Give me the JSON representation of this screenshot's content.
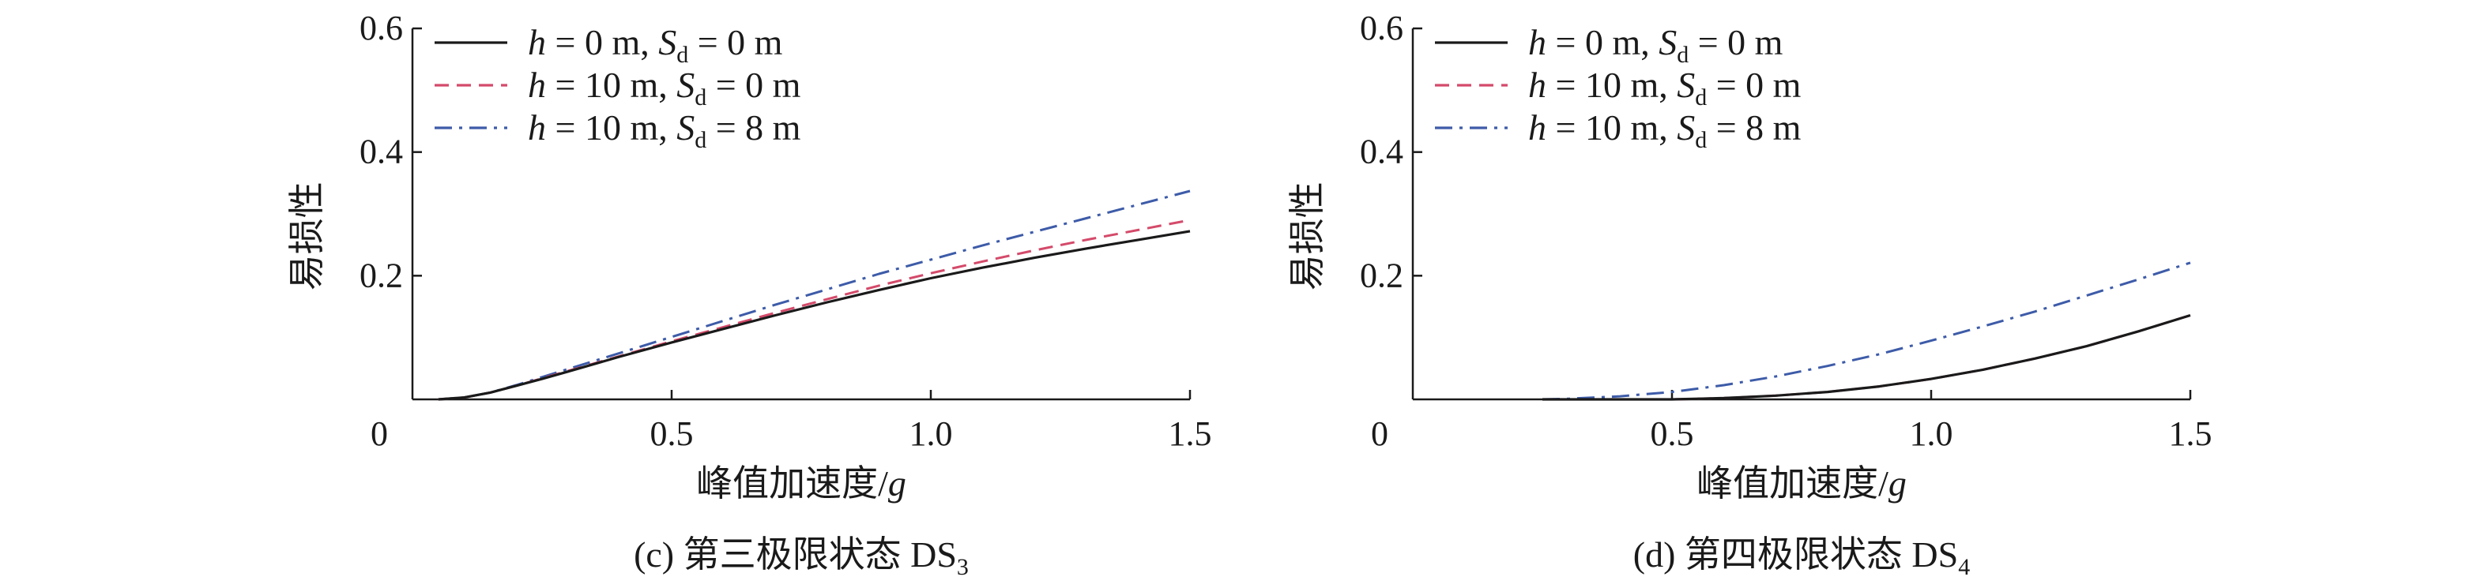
{
  "chart_data": [
    {
      "type": "line",
      "title": "",
      "caption": "(c) 第三极限状态 DS₃",
      "xlabel": "峰值加速度/g",
      "ylabel": "易损性",
      "xlim": [
        0,
        1.5
      ],
      "ylim": [
        0,
        0.6
      ],
      "xticks": [
        "0",
        "0.5",
        "1.0",
        "1.5"
      ],
      "yticks": [
        "0.2",
        "0.4",
        "0.6"
      ],
      "legend_position": "top-left",
      "x": [
        0.05,
        0.1,
        0.15,
        0.2,
        0.25,
        0.3,
        0.4,
        0.5,
        0.6,
        0.7,
        0.8,
        0.9,
        1.0,
        1.1,
        1.2,
        1.3,
        1.4,
        1.5
      ],
      "series": [
        {
          "name": "h = 0 m, Sd = 0 m",
          "style": "solid",
          "color": "#1a1a1a",
          "values": [
            0.0,
            0.003,
            0.011,
            0.022,
            0.033,
            0.045,
            0.069,
            0.092,
            0.114,
            0.136,
            0.157,
            0.177,
            0.196,
            0.213,
            0.229,
            0.244,
            0.258,
            0.272
          ]
        },
        {
          "name": "h = 10 m, Sd = 0 m",
          "style": "dashed",
          "color": "#d44a6a",
          "values": [
            0.0,
            0.003,
            0.011,
            0.022,
            0.034,
            0.046,
            0.07,
            0.094,
            0.117,
            0.14,
            0.162,
            0.184,
            0.204,
            0.223,
            0.241,
            0.258,
            0.274,
            0.29
          ]
        },
        {
          "name": "h = 10 m, Sd = 8 m",
          "style": "dashdot",
          "color": "#3d5ba8",
          "values": [
            0.0,
            0.003,
            0.011,
            0.023,
            0.036,
            0.049,
            0.075,
            0.101,
            0.127,
            0.153,
            0.178,
            0.203,
            0.226,
            0.249,
            0.271,
            0.293,
            0.315,
            0.337
          ]
        }
      ]
    },
    {
      "type": "line",
      "title": "",
      "caption": "(d) 第四极限状态 DS₄",
      "xlabel": "峰值加速度/g",
      "ylabel": "易损性",
      "xlim": [
        0,
        1.5
      ],
      "ylim": [
        0,
        0.6
      ],
      "xticks": [
        "0",
        "0.5",
        "1.0",
        "1.5"
      ],
      "yticks": [
        "0.2",
        "0.4",
        "0.6"
      ],
      "legend_position": "top-left",
      "x": [
        0.25,
        0.3,
        0.4,
        0.5,
        0.6,
        0.7,
        0.8,
        0.9,
        1.0,
        1.1,
        1.2,
        1.3,
        1.4,
        1.5
      ],
      "series": [
        {
          "name": "h = 0 m, Sd = 0 m",
          "style": "solid",
          "color": "#1a1a1a",
          "values": [
            0.0,
            0.0,
            0.0,
            0.0,
            0.002,
            0.006,
            0.012,
            0.021,
            0.033,
            0.048,
            0.066,
            0.086,
            0.11,
            0.136
          ]
        },
        {
          "name": "h = 10 m, Sd = 0 m",
          "style": "dashed",
          "color": "#d44a6a",
          "values": [
            0.0,
            0.0,
            0.0,
            0.0,
            0.002,
            0.006,
            0.012,
            0.021,
            0.033,
            0.048,
            0.066,
            0.086,
            0.11,
            0.136
          ]
        },
        {
          "name": "h = 10 m, Sd = 8 m",
          "style": "dashdot",
          "color": "#3d5ba8",
          "values": [
            0.0,
            0.001,
            0.005,
            0.012,
            0.023,
            0.037,
            0.054,
            0.073,
            0.095,
            0.118,
            0.142,
            0.168,
            0.194,
            0.221
          ]
        }
      ]
    }
  ],
  "legend": [
    {
      "h_prefix": "h",
      "h_text": " = 0 m, ",
      "s_prefix": "S",
      "s_sub": "d",
      "s_text": " = 0 m"
    },
    {
      "h_prefix": "h",
      "h_text": " = 10 m, ",
      "s_prefix": "S",
      "s_sub": "d",
      "s_text": " = 0 m"
    },
    {
      "h_prefix": "h",
      "h_text": " = 10 m, ",
      "s_prefix": "S",
      "s_sub": "d",
      "s_text": " = 8 m"
    }
  ],
  "captions": [
    {
      "text": "(c) 第三极限状态 DS",
      "sub": "3"
    },
    {
      "text": "(d) 第四极限状态 DS",
      "sub": "4"
    }
  ],
  "xlabel_parts": {
    "text": "峰值加速度/",
    "italic": "g"
  },
  "ylabel_text": "易损性"
}
